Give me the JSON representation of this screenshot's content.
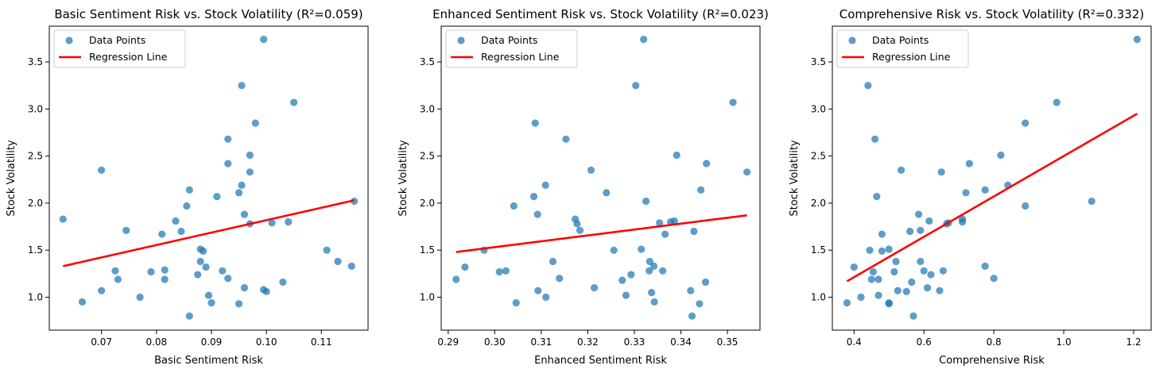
{
  "chart_data": [
    {
      "type": "scatter",
      "title": "Basic Sentiment Risk vs. Stock Volatility (R²=0.059)",
      "xlabel": "Basic Sentiment Risk",
      "ylabel": "Stock Volatility",
      "xlim": [
        0.0605,
        0.1185
      ],
      "ylim": [
        0.65,
        3.88
      ],
      "xticks": [
        0.07,
        0.08,
        0.09,
        0.1,
        0.11
      ],
      "xtick_labels": [
        "0.07",
        "0.08",
        "0.09",
        "0.10",
        "0.11"
      ],
      "yticks": [
        1.0,
        1.5,
        2.0,
        2.5,
        3.0,
        3.5
      ],
      "ytick_labels": [
        "1.0",
        "1.5",
        "2.0",
        "2.5",
        "3.0",
        "3.5"
      ],
      "legend": {
        "position": "upper left",
        "entries": [
          "Data Points",
          "Regression Line"
        ]
      },
      "points": [
        [
          0.063,
          1.83
        ],
        [
          0.0665,
          0.95
        ],
        [
          0.07,
          2.35
        ],
        [
          0.07,
          1.07
        ],
        [
          0.0725,
          1.28
        ],
        [
          0.073,
          1.19
        ],
        [
          0.0745,
          1.71
        ],
        [
          0.077,
          1.0
        ],
        [
          0.079,
          1.27
        ],
        [
          0.081,
          1.67
        ],
        [
          0.0815,
          1.29
        ],
        [
          0.0815,
          1.19
        ],
        [
          0.0835,
          1.81
        ],
        [
          0.0845,
          1.7
        ],
        [
          0.0855,
          1.97
        ],
        [
          0.086,
          2.14
        ],
        [
          0.086,
          0.8
        ],
        [
          0.0875,
          1.24
        ],
        [
          0.088,
          1.51
        ],
        [
          0.088,
          1.38
        ],
        [
          0.0885,
          1.49
        ],
        [
          0.089,
          1.32
        ],
        [
          0.0895,
          1.02
        ],
        [
          0.09,
          0.94
        ],
        [
          0.091,
          2.07
        ],
        [
          0.092,
          1.28
        ],
        [
          0.093,
          1.2
        ],
        [
          0.093,
          2.68
        ],
        [
          0.093,
          2.42
        ],
        [
          0.095,
          2.11
        ],
        [
          0.095,
          0.93
        ],
        [
          0.0955,
          3.25
        ],
        [
          0.0955,
          2.19
        ],
        [
          0.096,
          1.1
        ],
        [
          0.096,
          1.88
        ],
        [
          0.097,
          2.51
        ],
        [
          0.097,
          2.33
        ],
        [
          0.097,
          1.78
        ],
        [
          0.098,
          2.85
        ],
        [
          0.0995,
          1.08
        ],
        [
          0.0995,
          3.74
        ],
        [
          0.1,
          1.06
        ],
        [
          0.101,
          1.79
        ],
        [
          0.103,
          1.16
        ],
        [
          0.104,
          1.8
        ],
        [
          0.105,
          3.07
        ],
        [
          0.111,
          1.5
        ],
        [
          0.113,
          1.38
        ],
        [
          0.1155,
          1.33
        ],
        [
          0.116,
          2.02
        ]
      ],
      "regression": {
        "x": [
          0.063,
          0.116
        ],
        "y": [
          1.33,
          2.03
        ]
      }
    },
    {
      "type": "scatter",
      "title": "Enhanced Sentiment Risk vs. Stock Volatility (R²=0.023)",
      "xlabel": "Enhanced Sentiment Risk",
      "ylabel": "Stock Volatility",
      "xlim": [
        0.2885,
        0.357
      ],
      "ylim": [
        0.65,
        3.88
      ],
      "xticks": [
        0.29,
        0.3,
        0.31,
        0.32,
        0.33,
        0.34,
        0.35
      ],
      "xtick_labels": [
        "0.29",
        "0.30",
        "0.31",
        "0.32",
        "0.33",
        "0.34",
        "0.35"
      ],
      "yticks": [
        1.0,
        1.5,
        2.0,
        2.5,
        3.0,
        3.5
      ],
      "ytick_labels": [
        "1.0",
        "1.5",
        "2.0",
        "2.5",
        "3.0",
        "3.5"
      ],
      "legend": {
        "position": "upper left",
        "entries": [
          "Data Points",
          "Regression Line"
        ]
      },
      "points": [
        [
          0.2917,
          1.19
        ],
        [
          0.2936,
          1.32
        ],
        [
          0.2977,
          1.5
        ],
        [
          0.301,
          1.27
        ],
        [
          0.3024,
          1.28
        ],
        [
          0.3041,
          1.97
        ],
        [
          0.3046,
          0.94
        ],
        [
          0.3084,
          2.07
        ],
        [
          0.3087,
          2.85
        ],
        [
          0.3092,
          1.88
        ],
        [
          0.3093,
          1.07
        ],
        [
          0.3109,
          2.19
        ],
        [
          0.311,
          1.0
        ],
        [
          0.3125,
          1.38
        ],
        [
          0.3139,
          1.2
        ],
        [
          0.3153,
          2.68
        ],
        [
          0.3173,
          1.83
        ],
        [
          0.3177,
          1.78
        ],
        [
          0.3183,
          1.71
        ],
        [
          0.3207,
          2.35
        ],
        [
          0.3214,
          1.1
        ],
        [
          0.324,
          2.11
        ],
        [
          0.3256,
          1.5
        ],
        [
          0.3274,
          1.18
        ],
        [
          0.3282,
          1.02
        ],
        [
          0.3293,
          1.24
        ],
        [
          0.3303,
          3.25
        ],
        [
          0.3315,
          1.51
        ],
        [
          0.332,
          3.74
        ],
        [
          0.3325,
          2.02
        ],
        [
          0.3332,
          1.28
        ],
        [
          0.3333,
          1.38
        ],
        [
          0.3337,
          1.05
        ],
        [
          0.3342,
          1.33
        ],
        [
          0.3343,
          0.95
        ],
        [
          0.3354,
          1.79
        ],
        [
          0.3361,
          1.28
        ],
        [
          0.3366,
          1.67
        ],
        [
          0.3378,
          1.8
        ],
        [
          0.3386,
          1.81
        ],
        [
          0.3391,
          2.51
        ],
        [
          0.3421,
          1.07
        ],
        [
          0.3424,
          0.8
        ],
        [
          0.3428,
          1.7
        ],
        [
          0.344,
          0.93
        ],
        [
          0.3443,
          2.14
        ],
        [
          0.3453,
          1.16
        ],
        [
          0.3455,
          2.42
        ],
        [
          0.3512,
          3.07
        ],
        [
          0.3542,
          2.33
        ]
      ],
      "regression": {
        "x": [
          0.2917,
          0.3542
        ],
        "y": [
          1.48,
          1.87
        ]
      }
    },
    {
      "type": "scatter",
      "title": "Comprehensive Risk vs. Stock Volatility (R²=0.332)",
      "xlabel": "Comprehensive Risk",
      "ylabel": "Stock Volatility",
      "xlim": [
        0.338,
        1.25
      ],
      "ylim": [
        0.65,
        3.88
      ],
      "xticks": [
        0.4,
        0.6,
        0.8,
        1.0,
        1.2
      ],
      "xtick_labels": [
        "0.4",
        "0.6",
        "0.8",
        "1.0",
        "1.2"
      ],
      "yticks": [
        1.0,
        1.5,
        2.0,
        2.5,
        3.0,
        3.5
      ],
      "ytick_labels": [
        "1.0",
        "1.5",
        "2.0",
        "2.5",
        "3.0",
        "3.5"
      ],
      "legend": {
        "position": "upper left",
        "entries": [
          "Data Points",
          "Regression Line"
        ]
      },
      "points": [
        [
          0.38,
          0.94
        ],
        [
          0.4,
          1.32
        ],
        [
          0.42,
          1.0
        ],
        [
          0.44,
          3.25
        ],
        [
          0.445,
          1.5
        ],
        [
          0.45,
          1.19
        ],
        [
          0.455,
          1.27
        ],
        [
          0.46,
          2.68
        ],
        [
          0.465,
          2.07
        ],
        [
          0.47,
          1.19
        ],
        [
          0.47,
          1.02
        ],
        [
          0.48,
          1.67
        ],
        [
          0.48,
          1.49
        ],
        [
          0.5,
          1.51
        ],
        [
          0.5,
          0.94
        ],
        [
          0.5,
          0.93
        ],
        [
          0.515,
          1.27
        ],
        [
          0.52,
          1.38
        ],
        [
          0.525,
          1.07
        ],
        [
          0.535,
          2.35
        ],
        [
          0.55,
          1.06
        ],
        [
          0.56,
          1.7
        ],
        [
          0.565,
          1.16
        ],
        [
          0.57,
          0.8
        ],
        [
          0.585,
          1.88
        ],
        [
          0.59,
          1.71
        ],
        [
          0.59,
          1.38
        ],
        [
          0.6,
          1.28
        ],
        [
          0.61,
          1.1
        ],
        [
          0.615,
          1.81
        ],
        [
          0.62,
          1.24
        ],
        [
          0.645,
          1.07
        ],
        [
          0.65,
          2.33
        ],
        [
          0.655,
          1.28
        ],
        [
          0.665,
          1.78
        ],
        [
          0.67,
          1.79
        ],
        [
          0.71,
          1.83
        ],
        [
          0.71,
          1.8
        ],
        [
          0.72,
          2.11
        ],
        [
          0.73,
          2.42
        ],
        [
          0.775,
          2.14
        ],
        [
          0.775,
          1.33
        ],
        [
          0.8,
          1.2
        ],
        [
          0.82,
          2.51
        ],
        [
          0.84,
          2.19
        ],
        [
          0.89,
          2.85
        ],
        [
          0.89,
          1.97
        ],
        [
          0.98,
          3.07
        ],
        [
          1.08,
          2.02
        ],
        [
          1.21,
          3.74
        ]
      ],
      "regression": {
        "x": [
          0.38,
          1.21
        ],
        "y": [
          1.17,
          2.95
        ]
      }
    }
  ]
}
